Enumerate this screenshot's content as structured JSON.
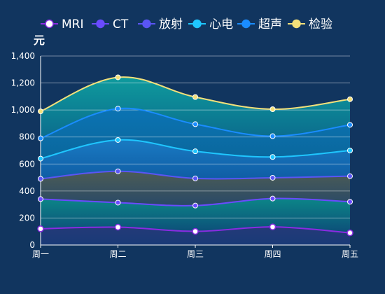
{
  "chart_data": {
    "type": "area",
    "stacked": true,
    "smooth": true,
    "unit": "元",
    "categories": [
      "周一",
      "周二",
      "周三",
      "周四",
      "周五"
    ],
    "ylim": [
      0,
      1400
    ],
    "yticks": [
      0,
      200,
      400,
      600,
      800,
      1000,
      1200,
      1400
    ],
    "ytick_labels": [
      "0",
      "200",
      "400",
      "600",
      "800",
      "1,000",
      "1,200",
      "1,400"
    ],
    "grid": true,
    "legend_position": "top",
    "series": [
      {
        "name": "MRI",
        "values": [
          120,
          132,
          101,
          134,
          90
        ],
        "stacked_totals": [
          120,
          132,
          101,
          134,
          90
        ],
        "color": "#8a2be2"
      },
      {
        "name": "CT",
        "values": [
          220,
          182,
          191,
          210,
          230
        ],
        "stacked_totals": [
          340,
          314,
          292,
          344,
          320
        ],
        "color": "#6a4bff"
      },
      {
        "name": "放射",
        "values": [
          150,
          232,
          201,
          154,
          190
        ],
        "stacked_totals": [
          490,
          546,
          493,
          498,
          510
        ],
        "color": "#5a55f5"
      },
      {
        "name": "心电",
        "values": [
          150,
          232,
          201,
          154,
          190
        ],
        "stacked_totals": [
          640,
          778,
          694,
          652,
          700
        ],
        "color": "#1fc6ff"
      },
      {
        "name": "超声",
        "values": [
          150,
          232,
          201,
          154,
          190
        ],
        "stacked_totals": [
          790,
          1010,
          895,
          806,
          890
        ],
        "color": "#1a8cff"
      },
      {
        "name": "检验",
        "values": [
          200,
          232,
          201,
          200,
          190
        ],
        "stacked_totals": [
          990,
          1242,
          1096,
          1006,
          1080
        ],
        "color": "#f3e07a"
      }
    ]
  }
}
